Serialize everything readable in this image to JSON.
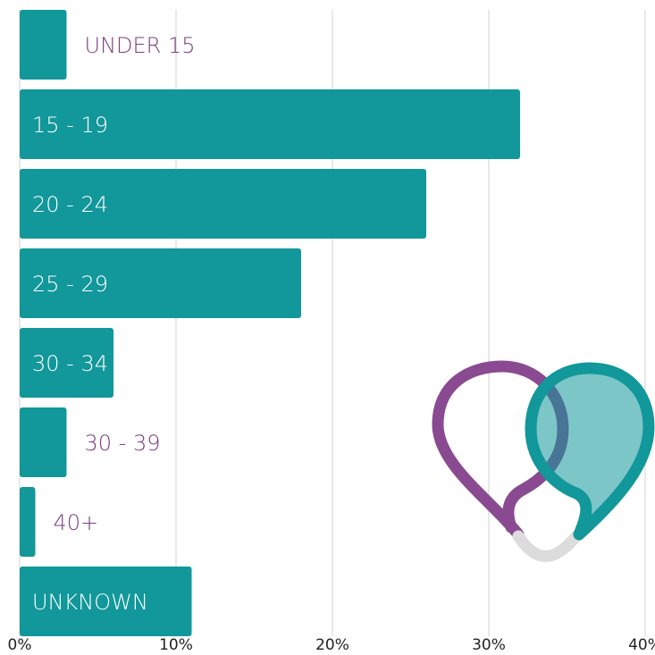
{
  "chart_data": {
    "type": "bar",
    "orientation": "horizontal",
    "categories": [
      "UNDER 15",
      "15 - 19",
      "20 - 24",
      "25 - 29",
      "30 - 34",
      "30 - 39",
      "40+",
      "UNKNOWN"
    ],
    "values": [
      3,
      32,
      26,
      18,
      6,
      3,
      1,
      11
    ],
    "color": "#12979a",
    "xlim": [
      0,
      40
    ],
    "xticks": [
      {
        "value": 0,
        "label": "0%"
      },
      {
        "value": 10,
        "label": "10%"
      },
      {
        "value": 20,
        "label": "20%"
      },
      {
        "value": 30,
        "label": "30%"
      },
      {
        "value": 40,
        "label": "40%"
      }
    ],
    "grid": true
  }
}
